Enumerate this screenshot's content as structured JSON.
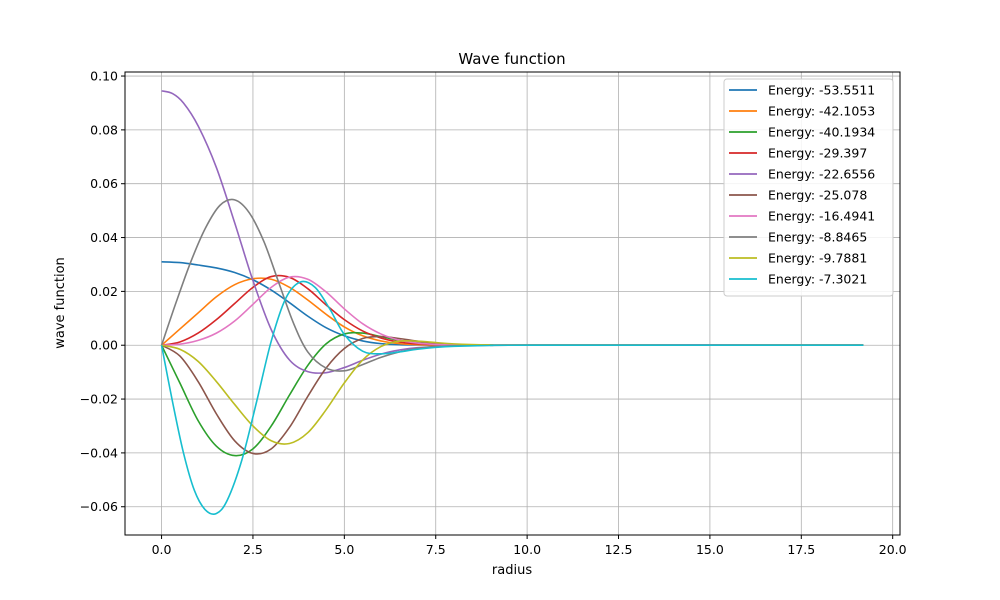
{
  "chart_data": {
    "type": "line",
    "title": "Wave function",
    "xlabel": "radius",
    "ylabel": "wave function",
    "xlim": [
      -1.0,
      20.2
    ],
    "ylim": [
      -0.0705,
      0.1015
    ],
    "xticks": [
      0.0,
      2.5,
      5.0,
      7.5,
      10.0,
      12.5,
      15.0,
      17.5,
      20.0
    ],
    "xtick_labels": [
      "0.0",
      "2.5",
      "5.0",
      "7.5",
      "10.0",
      "12.5",
      "15.0",
      "17.5",
      "20.0"
    ],
    "yticks": [
      -0.06,
      -0.04,
      -0.02,
      0.0,
      0.02,
      0.04,
      0.06,
      0.08,
      0.1
    ],
    "ytick_labels": [
      "−0.06",
      "−0.04",
      "−0.02",
      "0.00",
      "0.02",
      "0.04",
      "0.06",
      "0.08",
      "0.10"
    ],
    "grid": true,
    "legend_position": "top-right",
    "series": [
      {
        "name": "Energy: -53.5511",
        "color": "#1f77b4",
        "x": [
          0,
          0.5,
          1.0,
          1.5,
          2.0,
          2.5,
          3.0,
          3.5,
          4.0,
          4.5,
          5.0,
          5.5,
          6.0,
          6.5,
          7.0,
          8.0,
          9.0,
          10.0,
          19.2
        ],
        "y": [
          0.031,
          0.0307,
          0.0298,
          0.0287,
          0.027,
          0.0243,
          0.0205,
          0.0158,
          0.0108,
          0.0065,
          0.0035,
          0.0016,
          0.0006,
          0.0002,
          0.0001,
          0.0,
          0.0,
          0.0,
          0.0
        ]
      },
      {
        "name": "Energy: -42.1053",
        "color": "#ff7f0e",
        "x": [
          0,
          0.5,
          1.0,
          1.5,
          2.0,
          2.5,
          3.0,
          3.5,
          4.0,
          4.5,
          5.0,
          5.5,
          6.0,
          6.5,
          7.0,
          8.0,
          9.0,
          10.0,
          19.2
        ],
        "y": [
          0.0,
          0.006,
          0.012,
          0.018,
          0.0225,
          0.0247,
          0.0245,
          0.0215,
          0.0168,
          0.0115,
          0.0068,
          0.0035,
          0.0016,
          0.0006,
          0.0002,
          0.0,
          0.0,
          0.0,
          0.0
        ]
      },
      {
        "name": "Energy: -40.1934",
        "color": "#2ca02c",
        "x": [
          0,
          0.5,
          1.0,
          1.5,
          2.0,
          2.5,
          3.0,
          3.5,
          4.0,
          4.5,
          5.0,
          5.5,
          6.0,
          6.5,
          7.0,
          7.5,
          8.0,
          9.0,
          10.0,
          19.2
        ],
        "y": [
          0.0,
          -0.014,
          -0.028,
          -0.0375,
          -0.041,
          -0.0385,
          -0.03,
          -0.0185,
          -0.0075,
          0.0005,
          0.0042,
          0.0045,
          0.0032,
          0.0018,
          0.0009,
          0.0004,
          0.0001,
          0.0,
          0.0,
          0.0
        ]
      },
      {
        "name": "Energy: -29.397",
        "color": "#d62728",
        "x": [
          0,
          0.5,
          1.0,
          1.5,
          2.0,
          2.5,
          3.0,
          3.5,
          4.0,
          4.5,
          5.0,
          5.5,
          6.0,
          6.5,
          7.0,
          8.0,
          9.0,
          10.0,
          19.2
        ],
        "y": [
          0.0,
          0.0012,
          0.0045,
          0.0095,
          0.0155,
          0.0215,
          0.0255,
          0.0252,
          0.021,
          0.015,
          0.0095,
          0.0053,
          0.0027,
          0.0012,
          0.0005,
          0.0001,
          0.0,
          0.0,
          0.0
        ]
      },
      {
        "name": "Energy: -22.6556",
        "color": "#9467bd",
        "x": [
          0,
          0.3,
          0.6,
          1.0,
          1.5,
          2.0,
          2.5,
          3.0,
          3.5,
          4.0,
          4.5,
          5.0,
          5.5,
          6.0,
          6.5,
          7.0,
          8.0,
          9.0,
          10.0,
          19.2
        ],
        "y": [
          0.0945,
          0.0935,
          0.09,
          0.0815,
          0.066,
          0.0455,
          0.024,
          0.0058,
          -0.0055,
          -0.0098,
          -0.0102,
          -0.0083,
          -0.0056,
          -0.0033,
          -0.0018,
          -0.0009,
          -0.0002,
          0.0,
          0.0,
          0.0
        ]
      },
      {
        "name": "Energy: -25.078",
        "color": "#8c564b",
        "x": [
          0,
          0.5,
          1.0,
          1.5,
          2.0,
          2.5,
          3.0,
          3.5,
          4.0,
          4.5,
          5.0,
          5.5,
          6.0,
          6.5,
          7.0,
          7.5,
          8.0,
          9.0,
          10.0,
          19.2
        ],
        "y": [
          0.0,
          -0.004,
          -0.0135,
          -0.0255,
          -0.0355,
          -0.0402,
          -0.0385,
          -0.0305,
          -0.019,
          -0.0085,
          -0.0012,
          0.0025,
          0.0032,
          0.0025,
          0.0015,
          0.0008,
          0.0003,
          0.0,
          0.0,
          0.0
        ]
      },
      {
        "name": "Energy: -16.4941",
        "color": "#e377c2",
        "x": [
          0,
          0.5,
          1.0,
          1.5,
          2.0,
          2.5,
          3.0,
          3.5,
          4.0,
          4.5,
          5.0,
          5.5,
          6.0,
          6.5,
          7.0,
          7.5,
          8.0,
          9.0,
          10.0,
          19.2
        ],
        "y": [
          0.0,
          0.0004,
          0.0018,
          0.0045,
          0.009,
          0.0152,
          0.0215,
          0.0253,
          0.0245,
          0.0198,
          0.0135,
          0.008,
          0.0042,
          0.0019,
          0.0008,
          0.0003,
          0.0001,
          0.0,
          0.0,
          0.0
        ]
      },
      {
        "name": "Energy: -8.8465",
        "color": "#7f7f7f",
        "x": [
          0,
          0.4,
          0.8,
          1.2,
          1.6,
          2.0,
          2.4,
          2.8,
          3.2,
          3.6,
          4.0,
          4.5,
          5.0,
          5.5,
          6.0,
          6.5,
          7.0,
          7.5,
          8.0,
          9.0,
          10.0,
          19.2
        ],
        "y": [
          0.0,
          0.016,
          0.031,
          0.0435,
          0.052,
          0.054,
          0.0492,
          0.0385,
          0.0235,
          0.0085,
          -0.0025,
          -0.0085,
          -0.0095,
          -0.0072,
          -0.0045,
          -0.0025,
          -0.0012,
          -0.0005,
          -0.0002,
          0.0,
          0.0,
          0.0
        ]
      },
      {
        "name": "Energy: -9.7881",
        "color": "#bcbd22",
        "x": [
          0,
          0.5,
          1.0,
          1.5,
          2.0,
          2.5,
          3.0,
          3.5,
          4.0,
          4.5,
          5.0,
          5.5,
          6.0,
          6.5,
          7.0,
          7.5,
          8.0,
          9.0,
          10.0,
          19.2
        ],
        "y": [
          0.0,
          -0.0015,
          -0.006,
          -0.0135,
          -0.022,
          -0.03,
          -0.0355,
          -0.0365,
          -0.0325,
          -0.024,
          -0.014,
          -0.0055,
          -0.0005,
          0.0015,
          0.0015,
          0.001,
          0.0005,
          0.0001,
          0.0,
          0.0
        ]
      },
      {
        "name": "Energy: -7.3021",
        "color": "#17becf",
        "x": [
          0,
          0.3,
          0.6,
          0.9,
          1.2,
          1.5,
          1.8,
          2.2,
          2.6,
          3.0,
          3.4,
          3.8,
          4.2,
          4.6,
          5.0,
          5.5,
          6.0,
          6.5,
          7.0,
          7.5,
          8.0,
          9.0,
          10.0,
          19.2
        ],
        "y": [
          0.0,
          -0.021,
          -0.04,
          -0.054,
          -0.0612,
          -0.0625,
          -0.0575,
          -0.0425,
          -0.021,
          0.0015,
          0.0175,
          0.0235,
          0.0215,
          0.0135,
          0.004,
          -0.0022,
          -0.0032,
          -0.0025,
          -0.0015,
          -0.0008,
          -0.0004,
          -0.0001,
          0.0,
          0.0
        ]
      }
    ]
  }
}
